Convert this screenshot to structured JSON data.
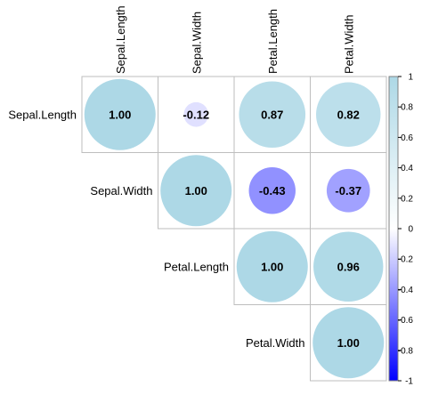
{
  "chart_data": {
    "type": "heatmap",
    "subtype": "correlation-circles-upper-triangle",
    "variables": [
      "Sepal.Length",
      "Sepal.Width",
      "Petal.Length",
      "Petal.Width"
    ],
    "matrix": [
      [
        1.0,
        -0.12,
        0.87,
        0.82
      ],
      [
        -0.12,
        1.0,
        -0.43,
        -0.37
      ],
      [
        0.87,
        -0.43,
        1.0,
        0.96
      ],
      [
        0.82,
        -0.37,
        0.96,
        1.0
      ]
    ],
    "value_labels": [
      [
        "1.00",
        "-0.12",
        "0.87",
        "0.82"
      ],
      [
        "",
        "1.00",
        "-0.43",
        "-0.37"
      ],
      [
        "",
        "",
        "1.00",
        "0.96"
      ],
      [
        "",
        "",
        "",
        "1.00"
      ]
    ],
    "colorbar": {
      "range": [
        -1,
        1
      ],
      "ticks": [
        "1",
        "0.8",
        "0.6",
        "0.4",
        "0.2",
        "0",
        "-0.2",
        "-0.4",
        "-0.6",
        "-0.8",
        "-1"
      ],
      "color_low": "#0000ff",
      "color_mid": "#ffffff",
      "color_high": "#add8e6"
    },
    "column_label_position": "top-rotated",
    "row_label_position": "diagonal-left",
    "grid": true
  }
}
